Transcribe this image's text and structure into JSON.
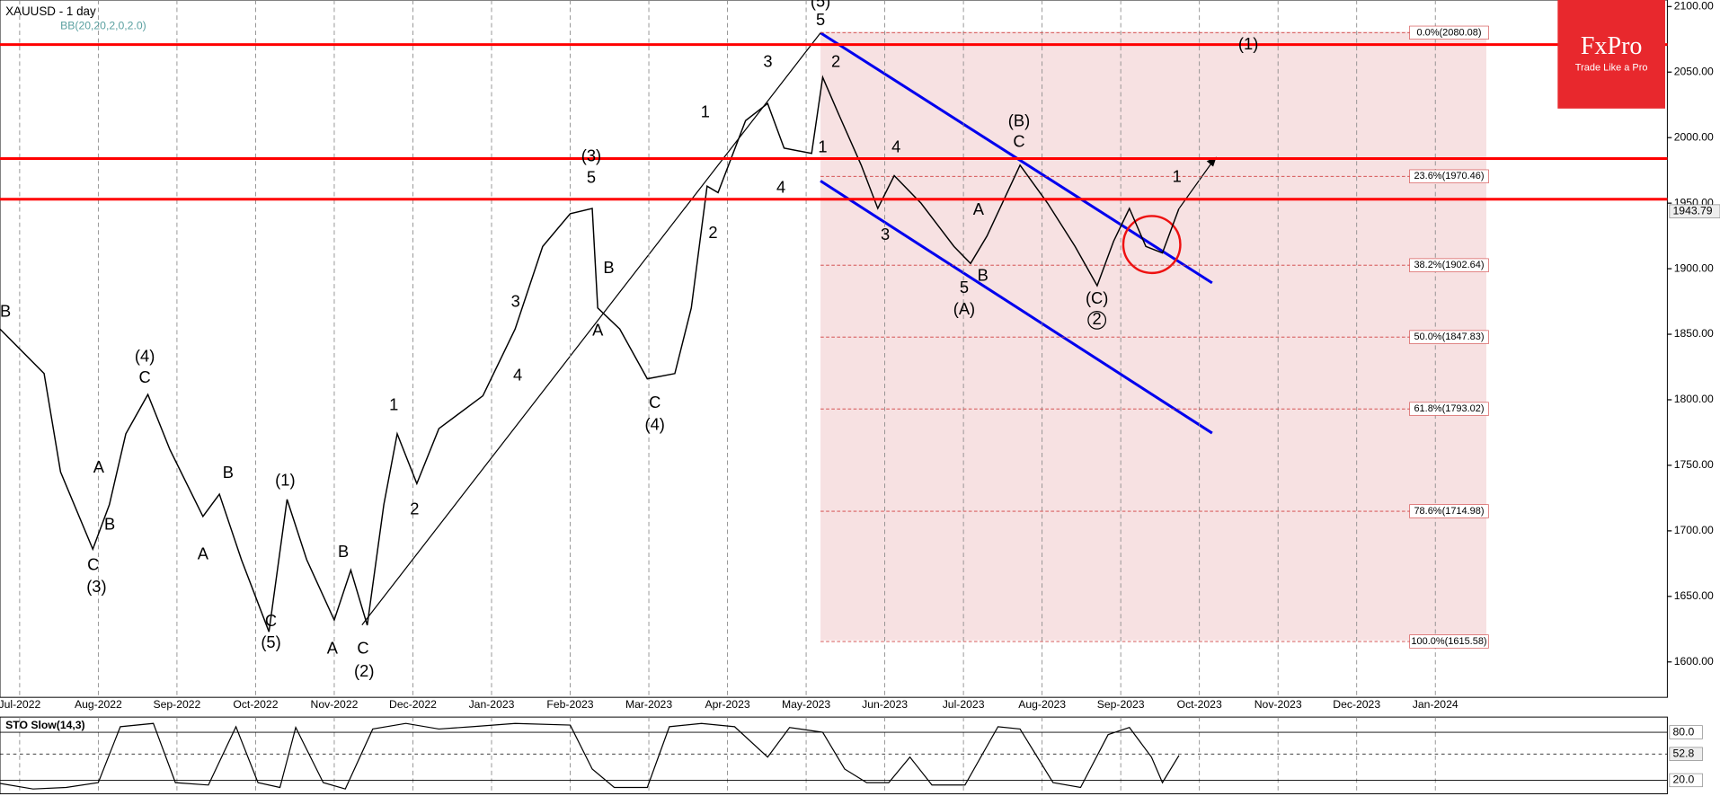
{
  "brand": {
    "name": "FxPro",
    "tagline": "Trade Like a Pro"
  },
  "chart_data": [
    {
      "type": "line",
      "title": "XAUUSD - 1 day",
      "indicator": "BB(20,20,2,0,2.0)",
      "x": [
        -0.25,
        0.31,
        0.52,
        0.93,
        1.14,
        1.35,
        1.63,
        1.91,
        2.33,
        2.54,
        2.82,
        3.17,
        3.4,
        3.65,
        4.0,
        4.21,
        4.42,
        4.63,
        4.8,
        5.05,
        5.33,
        5.89,
        6.3,
        6.65,
        7.0,
        7.28,
        7.35,
        7.63,
        7.98,
        8.33,
        8.54,
        8.74,
        8.88,
        9.23,
        9.51,
        9.72,
        10.07,
        10.21,
        10.42,
        10.7,
        10.91,
        11.12,
        11.46,
        11.88,
        12.09,
        12.3,
        12.72,
        13.07,
        13.42,
        13.7,
        13.91,
        14.11,
        14.32,
        14.53,
        14.74
      ],
      "series": [
        {
          "color": "#000000",
          "values": [
            1854,
            1820,
            1745,
            1686,
            1720,
            1774,
            1804,
            1762,
            1711,
            1728,
            1678,
            1623,
            1724,
            1678,
            1632,
            1670,
            1628,
            1720,
            1774,
            1736,
            1778,
            1803,
            1854,
            1917,
            1942,
            1946,
            1870,
            1854,
            1816,
            1820,
            1870,
            1963,
            1958,
            2013,
            2026,
            1992,
            1988,
            2046,
            2017,
            1979,
            1946,
            1971,
            1950,
            1917,
            1904,
            1925,
            1979,
            1950,
            1917,
            1887,
            1921,
            1946,
            1917,
            1912,
            1946
          ]
        }
      ],
      "xlim": [
        -0.25,
        20.95
      ],
      "xticks": [
        {
          "value": 0,
          "label": "Jul-2022"
        },
        {
          "value": 1,
          "label": "Aug-2022"
        },
        {
          "value": 2,
          "label": "Sep-2022"
        },
        {
          "value": 3,
          "label": "Oct-2022"
        },
        {
          "value": 4,
          "label": "Nov-2022"
        },
        {
          "value": 5,
          "label": "Dec-2022"
        },
        {
          "value": 6,
          "label": "Jan-2023"
        },
        {
          "value": 7,
          "label": "Feb-2023"
        },
        {
          "value": 8,
          "label": "Mar-2023"
        },
        {
          "value": 9,
          "label": "Apr-2023"
        },
        {
          "value": 10,
          "label": "May-2023"
        },
        {
          "value": 11,
          "label": "Jun-2023"
        },
        {
          "value": 12,
          "label": "Jul-2023"
        },
        {
          "value": 13,
          "label": "Aug-2023"
        },
        {
          "value": 14,
          "label": "Sep-2023"
        },
        {
          "value": 15,
          "label": "Oct-2023"
        },
        {
          "value": 16,
          "label": "Nov-2023"
        },
        {
          "value": 17,
          "label": "Dec-2023"
        },
        {
          "value": 18,
          "label": "Jan-2024"
        }
      ],
      "ylim": [
        1573,
        2105
      ],
      "yticks": [
        {
          "value": 2100,
          "label": "2100.00"
        },
        {
          "value": 2050,
          "label": "2050.00"
        },
        {
          "value": 2000,
          "label": "2000.00"
        },
        {
          "value": 1950,
          "label": "1950.00"
        },
        {
          "value": 1900,
          "label": "1900.00"
        },
        {
          "value": 1850,
          "label": "1850.00"
        },
        {
          "value": 1800,
          "label": "1800.00"
        },
        {
          "value": 1750,
          "label": "1750.00"
        },
        {
          "value": 1700,
          "label": "1700.00"
        },
        {
          "value": 1650,
          "label": "1650.00"
        },
        {
          "value": 1600,
          "label": "1600.00"
        }
      ],
      "last_price": 1943.79,
      "levels": [
        2071,
        1984,
        1953
      ],
      "level_color": "#ff0000",
      "fibonacci": [
        {
          "value": 2080.08,
          "label": "0.0%(2080.08)"
        },
        {
          "value": 1970.46,
          "label": "23.6%(1970.46)"
        },
        {
          "value": 1902.64,
          "label": "38.2%(1902.64)"
        },
        {
          "value": 1847.83,
          "label": "50.0%(1847.83)"
        },
        {
          "value": 1793.02,
          "label": "61.8%(1793.02)"
        },
        {
          "value": 1714.98,
          "label": "78.6%(1714.98)"
        },
        {
          "value": 1615.58,
          "label": "100.0%(1615.58)"
        }
      ],
      "annotations": [
        "(5)",
        "5",
        "2",
        "1",
        "4",
        "3",
        "1",
        "2",
        "(3)",
        "5",
        "B",
        "A",
        "3",
        "4",
        "C",
        "(4)",
        "1",
        "2",
        "(1)",
        "B",
        "A",
        "C",
        "(2)",
        "C",
        "(5)",
        "B",
        "(4)",
        "C",
        "A",
        "B",
        "C",
        "(3)",
        "B",
        "A",
        "4",
        "3",
        "5",
        "(A)",
        "B",
        "A",
        "(B)",
        "C",
        "(C)",
        "2",
        "1",
        "(1)"
      ]
    },
    {
      "type": "line",
      "title": "STO Slow(14,3)",
      "x": [
        -0.25,
        0.17,
        0.59,
        1.0,
        1.28,
        1.7,
        1.98,
        2.4,
        2.75,
        3.03,
        3.31,
        3.51,
        3.86,
        4.14,
        4.49,
        4.91,
        5.33,
        5.75,
        6.3,
        7.0,
        7.28,
        7.56,
        7.98,
        8.26,
        8.67,
        9.09,
        9.51,
        9.79,
        10.21,
        10.49,
        10.77,
        11.05,
        11.32,
        11.6,
        12.02,
        12.44,
        12.72,
        13.14,
        13.49,
        13.84,
        14.11,
        14.39,
        14.53,
        14.74
      ],
      "series": [
        {
          "color": "#000000",
          "values": [
            16,
            9,
            11,
            17,
            87,
            91,
            17,
            14,
            87,
            17,
            11,
            86,
            17,
            9,
            84,
            91,
            84,
            87,
            91,
            89,
            34,
            11,
            11,
            87,
            91,
            87,
            49,
            86,
            80,
            34,
            17,
            17,
            49,
            14,
            14,
            87,
            84,
            17,
            11,
            77,
            86,
            49,
            17,
            51
          ]
        }
      ],
      "xlim": [
        -0.25,
        20.95
      ],
      "ylim": [
        3,
        99
      ],
      "yticks": [
        {
          "value": 80,
          "label": "80.0"
        },
        {
          "value": 20,
          "label": "20.0"
        }
      ],
      "last_value": {
        "value": 52.8,
        "label": "52.8"
      }
    }
  ]
}
